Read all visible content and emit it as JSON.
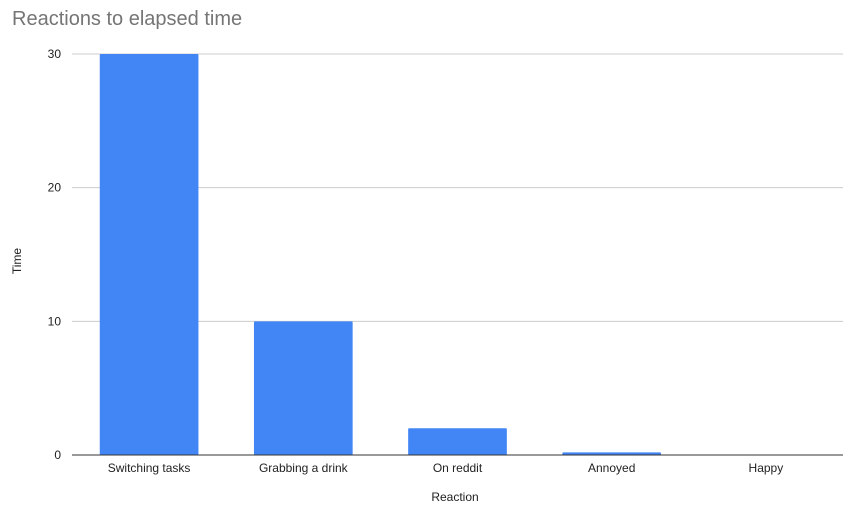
{
  "chart_data": {
    "type": "bar",
    "title": "Reactions to elapsed time",
    "xlabel": "Reaction",
    "ylabel": "Time",
    "categories": [
      "Switching tasks",
      "Grabbing a drink",
      "On reddit",
      "Annoyed",
      "Happy"
    ],
    "series": [
      {
        "values": [
          30,
          10,
          2,
          0.2,
          0
        ],
        "color": "#4285f4"
      }
    ],
    "ylim": [
      0,
      30
    ],
    "yticks": [
      "0",
      "10",
      "20",
      "30"
    ],
    "grid": true,
    "legend": "none",
    "gridline_color": "#cccccc",
    "axis_color": "#333333"
  }
}
